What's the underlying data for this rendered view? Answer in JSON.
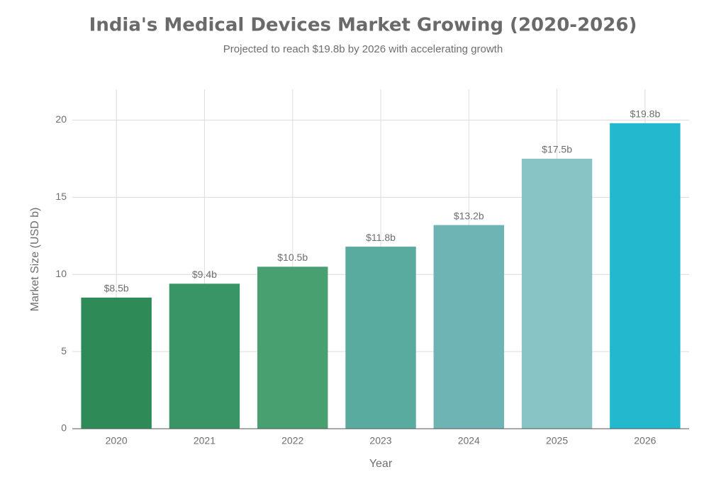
{
  "chart_data": {
    "type": "bar",
    "title": "India's Medical Devices Market Growing (2020-2026)",
    "subtitle": "Projected to reach $19.8b by 2026 with accelerating growth",
    "x_label": "Year",
    "y_label": "Market Size (USD b)",
    "categories": [
      "2020",
      "2021",
      "2022",
      "2023",
      "2024",
      "2025",
      "2026"
    ],
    "values": [
      8.5,
      9.4,
      10.5,
      11.8,
      13.2,
      17.5,
      19.8
    ],
    "value_labels": [
      "$8.5b",
      "$9.4b",
      "$10.5b",
      "$11.8b",
      "$13.2b",
      "$17.5b",
      "$19.8b"
    ],
    "colors": [
      "#2e8b57",
      "#3a9566",
      "#48a070",
      "#5aab9f",
      "#6fb4b5",
      "#88c3c5",
      "#22b8cd"
    ],
    "ylim": [
      0,
      22
    ],
    "yticks": [
      0,
      5,
      10,
      15,
      20
    ],
    "grid": true
  }
}
